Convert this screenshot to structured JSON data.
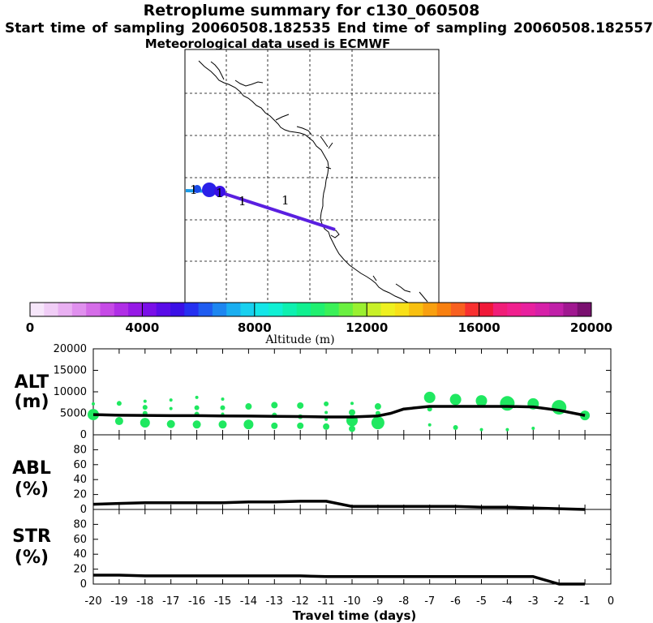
{
  "header": {
    "title": "Retroplume summary for c130_060508",
    "sampling": "Start time of sampling 20060508.182535     End time of sampling 20060508.182557",
    "met": "Meteorological data used is ECMWF"
  },
  "colors": {
    "track": "#5a1fe0",
    "track_start": "#1a9be8",
    "points": "#1fe860",
    "line": "#000000",
    "grid": "#000000"
  },
  "map": {
    "track_labels": [
      "1",
      "1",
      "1",
      "1"
    ],
    "grid_lines": "dashed"
  },
  "colorbar": {
    "title": "Altitude (m)",
    "tick_labels": [
      "0",
      "4000",
      "8000",
      "12000",
      "16000",
      "20000"
    ],
    "colors": [
      "#f6e6fa",
      "#f0cdf6",
      "#e9b0f2",
      "#e090ee",
      "#d56de8",
      "#c64ae6",
      "#b02ee6",
      "#9619e6",
      "#7a0fe8",
      "#5a0ce8",
      "#3a10e6",
      "#2530f0",
      "#1f5cf0",
      "#1d86f0",
      "#1aaef0",
      "#18d0ef",
      "#14e6e8",
      "#10f0d4",
      "#0ef0b0",
      "#10f090",
      "#20f070",
      "#3af058",
      "#6af040",
      "#9af030",
      "#c8f028",
      "#eef020",
      "#f8e018",
      "#f8c010",
      "#f8a010",
      "#f88010",
      "#f86020",
      "#f83030",
      "#f01838",
      "#f01e78",
      "#f0208e",
      "#e8209e",
      "#d620a8",
      "#c020a8",
      "#a01890",
      "#7a1070"
    ]
  },
  "chart_data": [
    {
      "type": "line",
      "title": "ALT (m)",
      "panel_label": [
        "ALT",
        "(m)"
      ],
      "xlabel": "Travel time (days)",
      "x_ticks": [
        -20,
        -19,
        -18,
        -17,
        -16,
        -15,
        -14,
        -13,
        -12,
        -11,
        -10,
        -9,
        -8,
        -7,
        -6,
        -5,
        -4,
        -3,
        -2,
        -1,
        0
      ],
      "xlim": [
        -20,
        0
      ],
      "ylim": [
        0,
        20000
      ],
      "y_ticks": [
        0,
        5000,
        10000,
        15000,
        20000
      ],
      "line": {
        "x": [
          -20,
          -19,
          -18,
          -17,
          -16,
          -15,
          -14,
          -13,
          -12,
          -11,
          -10,
          -9,
          -8.5,
          -8,
          -7,
          -6,
          -5,
          -4,
          -3,
          -2,
          -1
        ],
        "y": [
          4700,
          4550,
          4500,
          4450,
          4450,
          4400,
          4350,
          4300,
          4250,
          4150,
          4150,
          4400,
          5000,
          6000,
          6600,
          6600,
          6600,
          6600,
          6500,
          5700,
          4500
        ]
      },
      "scatter": [
        {
          "x": -20,
          "y": 7200,
          "s": 2
        },
        {
          "x": -20,
          "y": 4700,
          "s": 7
        },
        {
          "x": -19,
          "y": 7300,
          "s": 3
        },
        {
          "x": -19,
          "y": 3200,
          "s": 5
        },
        {
          "x": -18,
          "y": 7800,
          "s": 2
        },
        {
          "x": -18,
          "y": 6400,
          "s": 3
        },
        {
          "x": -18,
          "y": 5000,
          "s": 3
        },
        {
          "x": -18,
          "y": 2800,
          "s": 6
        },
        {
          "x": -17,
          "y": 8100,
          "s": 2
        },
        {
          "x": -17,
          "y": 6100,
          "s": 2
        },
        {
          "x": -17,
          "y": 2500,
          "s": 5
        },
        {
          "x": -16,
          "y": 8700,
          "s": 2
        },
        {
          "x": -16,
          "y": 6300,
          "s": 3
        },
        {
          "x": -16,
          "y": 4800,
          "s": 3
        },
        {
          "x": -16,
          "y": 2400,
          "s": 5
        },
        {
          "x": -15,
          "y": 8300,
          "s": 2
        },
        {
          "x": -15,
          "y": 6300,
          "s": 3
        },
        {
          "x": -15,
          "y": 4800,
          "s": 2
        },
        {
          "x": -15,
          "y": 2400,
          "s": 5
        },
        {
          "x": -14,
          "y": 6600,
          "s": 4
        },
        {
          "x": -14,
          "y": 2400,
          "s": 6
        },
        {
          "x": -13,
          "y": 6900,
          "s": 4
        },
        {
          "x": -13,
          "y": 4600,
          "s": 3
        },
        {
          "x": -13,
          "y": 2100,
          "s": 4
        },
        {
          "x": -12,
          "y": 6800,
          "s": 4
        },
        {
          "x": -12,
          "y": 4200,
          "s": 3
        },
        {
          "x": -12,
          "y": 2100,
          "s": 4
        },
        {
          "x": -11,
          "y": 7200,
          "s": 3
        },
        {
          "x": -11,
          "y": 5200,
          "s": 2
        },
        {
          "x": -11,
          "y": 3600,
          "s": 2
        },
        {
          "x": -11,
          "y": 1900,
          "s": 4
        },
        {
          "x": -10,
          "y": 7300,
          "s": 2
        },
        {
          "x": -10,
          "y": 5200,
          "s": 4
        },
        {
          "x": -10,
          "y": 3300,
          "s": 7
        },
        {
          "x": -10,
          "y": 1400,
          "s": 4
        },
        {
          "x": -9,
          "y": 6600,
          "s": 4
        },
        {
          "x": -9,
          "y": 5000,
          "s": 3
        },
        {
          "x": -9,
          "y": 2800,
          "s": 8
        },
        {
          "x": -7,
          "y": 8700,
          "s": 7
        },
        {
          "x": -7,
          "y": 6000,
          "s": 3
        },
        {
          "x": -7,
          "y": 2300,
          "s": 2
        },
        {
          "x": -6,
          "y": 8200,
          "s": 7
        },
        {
          "x": -6,
          "y": 1700,
          "s": 3
        },
        {
          "x": -5,
          "y": 7900,
          "s": 7
        },
        {
          "x": -5,
          "y": 1200,
          "s": 2
        },
        {
          "x": -4,
          "y": 7300,
          "s": 9
        },
        {
          "x": -4,
          "y": 1200,
          "s": 2
        },
        {
          "x": -3,
          "y": 7200,
          "s": 7
        },
        {
          "x": -3,
          "y": 1500,
          "s": 2
        },
        {
          "x": -2,
          "y": 6400,
          "s": 9
        },
        {
          "x": -1,
          "y": 4500,
          "s": 6
        }
      ]
    },
    {
      "type": "line",
      "title": "ABL (%)",
      "panel_label": [
        "ABL",
        "(%)"
      ],
      "ylim": [
        0,
        100
      ],
      "y_ticks": [
        0,
        20,
        40,
        60,
        80
      ],
      "line": {
        "x": [
          -20,
          -19,
          -18,
          -17,
          -16,
          -15,
          -14,
          -13,
          -12,
          -11,
          -10,
          -9,
          -8,
          -7,
          -6,
          -5,
          -4,
          -3,
          -2,
          -1
        ],
        "y": [
          7,
          8,
          9,
          9,
          9,
          9,
          10,
          10,
          11,
          11,
          4,
          4,
          4,
          4,
          4,
          3,
          3,
          2,
          1,
          0
        ]
      }
    },
    {
      "type": "line",
      "title": "STR (%)",
      "panel_label": [
        "STR",
        "(%)"
      ],
      "ylim": [
        0,
        100
      ],
      "y_ticks": [
        0,
        20,
        40,
        60,
        80
      ],
      "line": {
        "x": [
          -20,
          -19,
          -18,
          -17,
          -16,
          -15,
          -14,
          -13,
          -12,
          -11,
          -10,
          -9,
          -8,
          -7,
          -6,
          -5,
          -4,
          -3,
          -2,
          -1
        ],
        "y": [
          12,
          12,
          11,
          11,
          11,
          11,
          11,
          11,
          11,
          10,
          10,
          10,
          10,
          10,
          10,
          10,
          10,
          10,
          0,
          0
        ]
      }
    }
  ]
}
